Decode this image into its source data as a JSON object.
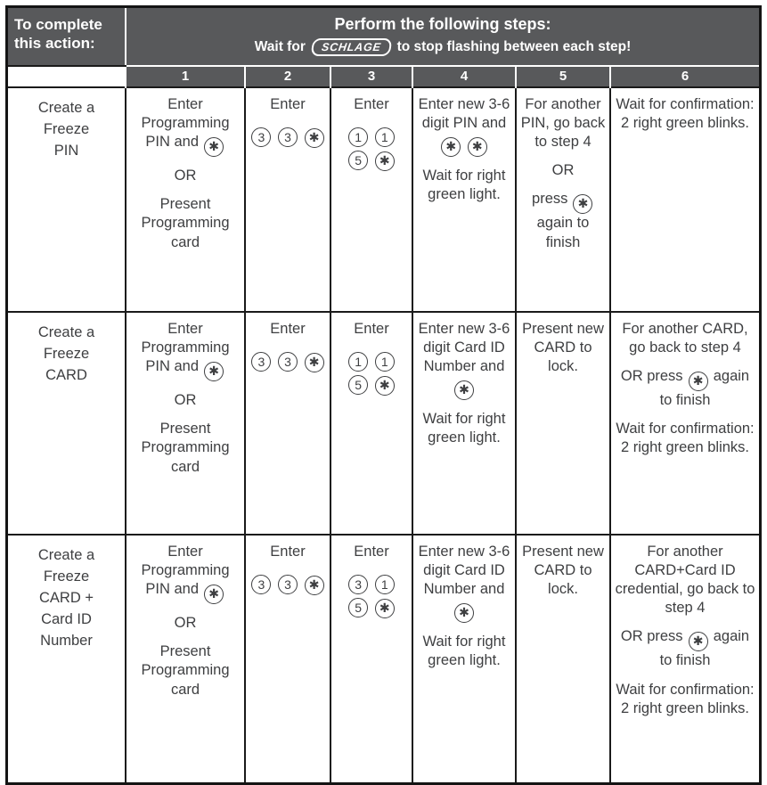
{
  "colors": {
    "header_bg": "#58595b",
    "header_text": "#ffffff",
    "body_text": "#3e3f41",
    "border": "#1a1a1a",
    "background": "#ffffff"
  },
  "header": {
    "action_title": "To complete this action:",
    "steps_title": "Perform the following steps:",
    "wait_prefix": "Wait for",
    "logo_text": "SCHLAGE",
    "wait_suffix": "to stop flashing between each step!",
    "step_numbers": [
      "1",
      "2",
      "3",
      "4",
      "5",
      "6"
    ]
  },
  "rows": [
    {
      "action": [
        "Create a",
        "Freeze",
        "PIN"
      ],
      "cells": [
        [
          "Enter Programming PIN and [*]",
          "OR",
          "Present Programming card"
        ],
        [
          "Enter",
          "[3] [3] [*]"
        ],
        [
          "Enter",
          "[1] [1] [5] [*]"
        ],
        [
          "Enter new 3-6 digit PIN and [*] [*]",
          "Wait for right green light."
        ],
        [
          "For another PIN, go back to step 4",
          "OR",
          "press [*] again to finish"
        ],
        [
          "Wait for confirmation: 2 right green blinks."
        ]
      ]
    },
    {
      "action": [
        "Create a",
        "Freeze",
        "CARD"
      ],
      "cells": [
        [
          "Enter Programming PIN and [*]",
          "OR",
          "Present Programming card"
        ],
        [
          "Enter",
          "[3] [3] [*]"
        ],
        [
          "Enter",
          "[1] [1] [5] [*]"
        ],
        [
          "Enter new 3-6 digit Card ID Number and [*]",
          "Wait for right green light."
        ],
        [
          "Present new CARD to lock."
        ],
        [
          "For another CARD, go back to step 4",
          "OR press [*] again to finish",
          "Wait for confirmation: 2 right green blinks."
        ]
      ]
    },
    {
      "action": [
        "Create a",
        "Freeze",
        "CARD +",
        "Card ID",
        "Number"
      ],
      "cells": [
        [
          "Enter Programming PIN and [*]",
          "OR",
          "Present Programming card"
        ],
        [
          "Enter",
          "[3] [3] [*]"
        ],
        [
          "Enter",
          "[3] [1] [5] [*]"
        ],
        [
          "Enter new 3-6 digit Card ID Number and [*]",
          "Wait for right green light."
        ],
        [
          "Present new CARD to lock."
        ],
        [
          "For another CARD+Card ID credential, go back to step 4",
          "OR press [*] again to finish",
          "Wait for confirmation: 2 right green blinks."
        ]
      ]
    }
  ]
}
